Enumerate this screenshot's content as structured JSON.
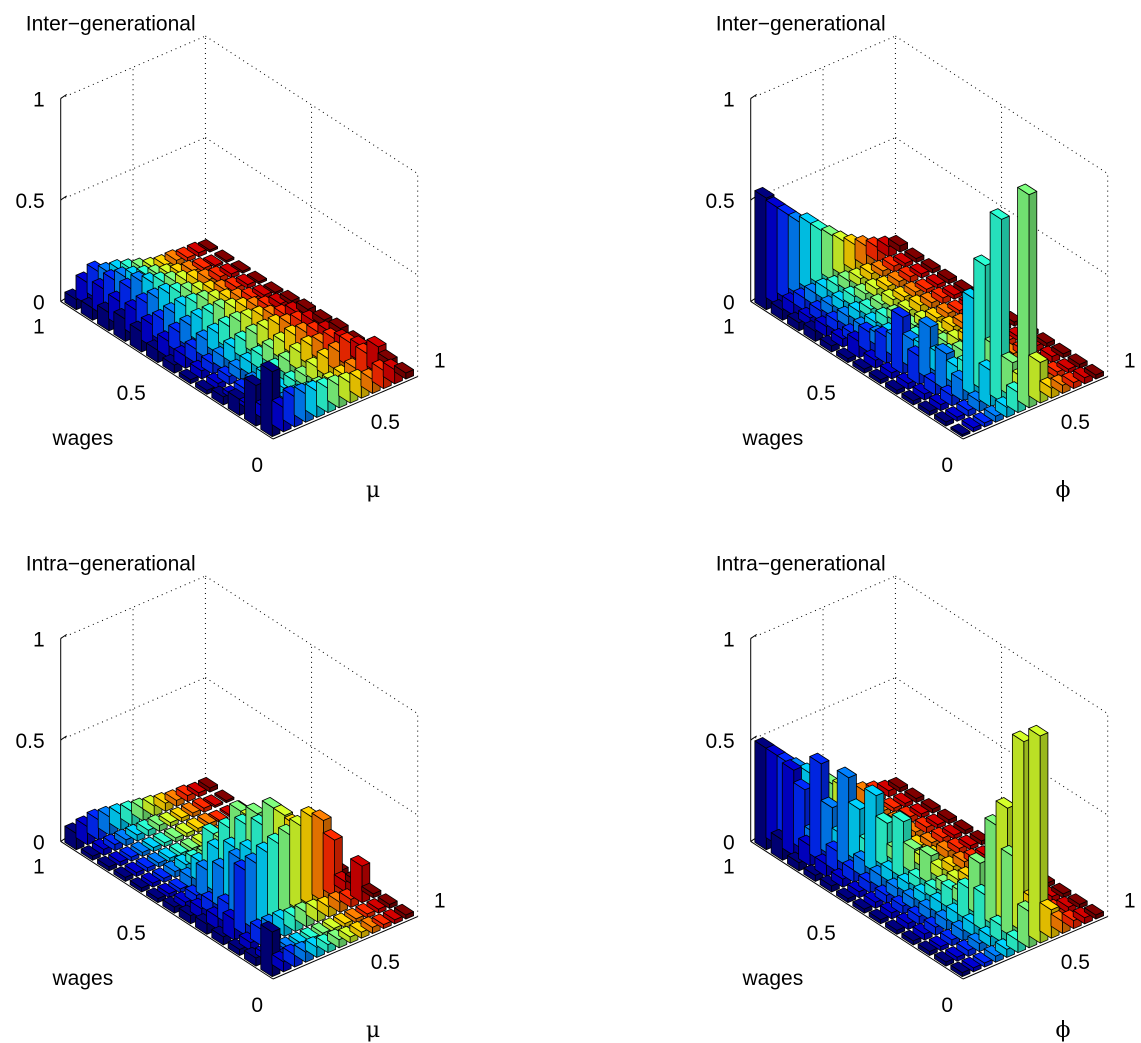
{
  "chart_data": [
    {
      "type": "bar3d",
      "title": "Inter−generational",
      "xlabel": "μ",
      "ylabel": "wages",
      "x_ticks": [
        "0.5",
        "1"
      ],
      "y_ticks": [
        "1",
        "0.5",
        "0"
      ],
      "z_ticks": [
        "0",
        "0.5",
        "1"
      ],
      "zlim": [
        0,
        1
      ],
      "grid": true,
      "row_heights": [
        [
          0.05,
          0.11,
          0.14,
          0.11,
          0.1,
          0.08,
          0.06,
          0.04,
          0.03,
          0.03,
          0.02,
          0.02,
          0.01
        ],
        [
          0.06,
          0.13,
          0.15,
          0.14,
          0.12,
          0.1,
          0.08,
          0.06,
          0.04,
          0.03,
          0.02,
          0.01,
          0.01
        ],
        [
          0.09,
          0.12,
          0.16,
          0.17,
          0.14,
          0.12,
          0.1,
          0.08,
          0.06,
          0.04,
          0.03,
          0.02,
          0.01
        ],
        [
          0.11,
          0.13,
          0.14,
          0.14,
          0.14,
          0.12,
          0.1,
          0.08,
          0.06,
          0.04,
          0.03,
          0.02,
          0.01
        ],
        [
          0.1,
          0.11,
          0.11,
          0.12,
          0.13,
          0.12,
          0.11,
          0.09,
          0.07,
          0.05,
          0.03,
          0.02,
          0.01
        ],
        [
          0.06,
          0.08,
          0.1,
          0.11,
          0.12,
          0.12,
          0.12,
          0.1,
          0.08,
          0.06,
          0.04,
          0.03,
          0.02
        ],
        [
          0.04,
          0.06,
          0.07,
          0.09,
          0.1,
          0.11,
          0.11,
          0.1,
          0.09,
          0.07,
          0.05,
          0.04,
          0.03
        ],
        [
          0.02,
          0.04,
          0.05,
          0.06,
          0.08,
          0.09,
          0.1,
          0.1,
          0.1,
          0.08,
          0.07,
          0.05,
          0.03
        ],
        [
          0.02,
          0.03,
          0.04,
          0.05,
          0.06,
          0.07,
          0.08,
          0.09,
          0.1,
          0.09,
          0.07,
          0.05,
          0.04
        ],
        [
          0.04,
          0.02,
          0.03,
          0.04,
          0.05,
          0.06,
          0.07,
          0.09,
          0.1,
          0.09,
          0.09,
          0.06,
          0.03
        ],
        [
          0.08,
          0.02,
          0.02,
          0.03,
          0.04,
          0.05,
          0.05,
          0.07,
          0.09,
          0.1,
          0.12,
          0.08,
          0.03
        ],
        [
          0.2,
          0.06,
          0.05,
          0.05,
          0.06,
          0.05,
          0.05,
          0.05,
          0.06,
          0.07,
          0.12,
          0.13,
          0.04
        ],
        [
          0.32,
          0.12,
          0.15,
          0.14,
          0.13,
          0.12,
          0.11,
          0.1,
          0.09,
          0.07,
          0.09,
          0.07,
          0.03
        ]
      ]
    },
    {
      "type": "bar3d",
      "title": "Inter−generational",
      "xlabel": "ϕ",
      "ylabel": "wages",
      "x_ticks": [
        "0.5",
        "1"
      ],
      "y_ticks": [
        "1",
        "0.5",
        "0"
      ],
      "z_ticks": [
        "0",
        "0.5",
        "1"
      ],
      "zlim": [
        0,
        1
      ],
      "grid": true,
      "row_heights": [
        [
          0.55,
          0.48,
          0.42,
          0.36,
          0.33,
          0.27,
          0.22,
          0.17,
          0.13,
          0.1,
          0.07,
          0.05,
          0.03
        ],
        [
          0.05,
          0.06,
          0.06,
          0.06,
          0.06,
          0.05,
          0.05,
          0.04,
          0.04,
          0.03,
          0.03,
          0.02,
          0.02
        ],
        [
          0.04,
          0.04,
          0.05,
          0.05,
          0.05,
          0.05,
          0.04,
          0.04,
          0.03,
          0.03,
          0.03,
          0.02,
          0.02
        ],
        [
          0.05,
          0.05,
          0.05,
          0.05,
          0.05,
          0.04,
          0.04,
          0.04,
          0.03,
          0.03,
          0.02,
          0.02,
          0.02
        ],
        [
          0.03,
          0.04,
          0.04,
          0.05,
          0.05,
          0.05,
          0.04,
          0.04,
          0.04,
          0.03,
          0.03,
          0.02,
          0.02
        ],
        [
          0.02,
          0.08,
          0.1,
          0.06,
          0.05,
          0.05,
          0.04,
          0.04,
          0.03,
          0.03,
          0.02,
          0.02,
          0.01
        ],
        [
          0.02,
          0.04,
          0.13,
          0.1,
          0.07,
          0.06,
          0.05,
          0.04,
          0.04,
          0.03,
          0.03,
          0.02,
          0.02
        ],
        [
          0.02,
          0.03,
          0.28,
          0.14,
          0.09,
          0.08,
          0.06,
          0.05,
          0.04,
          0.03,
          0.03,
          0.02,
          0.02
        ],
        [
          0.02,
          0.03,
          0.14,
          0.26,
          0.1,
          0.08,
          0.07,
          0.05,
          0.04,
          0.04,
          0.03,
          0.02,
          0.02
        ],
        [
          0.02,
          0.03,
          0.06,
          0.18,
          0.09,
          0.08,
          0.06,
          0.05,
          0.04,
          0.04,
          0.03,
          0.03,
          0.02
        ],
        [
          0.02,
          0.03,
          0.05,
          0.1,
          0.48,
          0.62,
          0.2,
          0.06,
          0.05,
          0.04,
          0.03,
          0.03,
          0.02
        ],
        [
          0.02,
          0.02,
          0.03,
          0.05,
          0.18,
          0.9,
          0.17,
          0.07,
          0.05,
          0.04,
          0.03,
          0.02,
          0.02
        ],
        [
          0.01,
          0.02,
          0.02,
          0.03,
          0.05,
          0.1,
          1.05,
          0.2,
          0.05,
          0.04,
          0.03,
          0.03,
          0.02
        ]
      ]
    },
    {
      "type": "bar3d",
      "title": "Intra−generational",
      "xlabel": "μ",
      "ylabel": "wages",
      "x_ticks": [
        "0.5",
        "1"
      ],
      "y_ticks": [
        "1",
        "0.5",
        "0"
      ],
      "z_ticks": [
        "0",
        "0.5",
        "1"
      ],
      "zlim": [
        0,
        1
      ],
      "grid": true,
      "row_heights": [
        [
          0.08,
          0.09,
          0.1,
          0.09,
          0.08,
          0.07,
          0.06,
          0.05,
          0.04,
          0.03,
          0.03,
          0.02,
          0.02
        ],
        [
          0.02,
          0.03,
          0.03,
          0.03,
          0.03,
          0.03,
          0.03,
          0.02,
          0.02,
          0.02,
          0.02,
          0.01,
          0.01
        ],
        [
          0.02,
          0.02,
          0.02,
          0.02,
          0.02,
          0.02,
          0.02,
          0.02,
          0.02,
          0.02,
          0.01,
          0.01,
          0.01
        ],
        [
          0.02,
          0.02,
          0.02,
          0.02,
          0.02,
          0.02,
          0.02,
          0.02,
          0.02,
          0.02,
          0.01,
          0.01,
          0.01
        ],
        [
          0.02,
          0.02,
          0.02,
          0.03,
          0.04,
          0.04,
          0.04,
          0.04,
          0.03,
          0.03,
          0.02,
          0.02,
          0.01
        ],
        [
          0.02,
          0.02,
          0.02,
          0.05,
          0.1,
          0.22,
          0.16,
          0.06,
          0.05,
          0.04,
          0.03,
          0.02,
          0.02
        ],
        [
          0.03,
          0.03,
          0.04,
          0.14,
          0.22,
          0.3,
          0.36,
          0.3,
          0.08,
          0.06,
          0.04,
          0.03,
          0.02
        ],
        [
          0.04,
          0.05,
          0.06,
          0.2,
          0.28,
          0.37,
          0.4,
          0.3,
          0.24,
          0.08,
          0.05,
          0.04,
          0.03
        ],
        [
          0.05,
          0.06,
          0.1,
          0.3,
          0.32,
          0.42,
          0.48,
          0.42,
          0.35,
          0.26,
          0.06,
          0.04,
          0.03
        ],
        [
          0.04,
          0.1,
          0.32,
          0.33,
          0.36,
          0.38,
          0.4,
          0.42,
          0.44,
          0.4,
          0.28,
          0.05,
          0.03
        ],
        [
          0.03,
          0.04,
          0.08,
          0.08,
          0.08,
          0.07,
          0.07,
          0.06,
          0.05,
          0.05,
          0.04,
          0.18,
          0.02
        ],
        [
          0.04,
          0.03,
          0.03,
          0.02,
          0.02,
          0.02,
          0.02,
          0.02,
          0.02,
          0.02,
          0.02,
          0.02,
          0.02
        ],
        [
          0.22,
          0.05,
          0.06,
          0.05,
          0.05,
          0.04,
          0.04,
          0.03,
          0.03,
          0.03,
          0.02,
          0.02,
          0.02
        ]
      ]
    },
    {
      "type": "bar3d",
      "title": "Intra−generational",
      "xlabel": "ϕ",
      "ylabel": "wages",
      "x_ticks": [
        "0.5",
        "1"
      ],
      "y_ticks": [
        "1",
        "0.5",
        "0"
      ],
      "z_ticks": [
        "0",
        "0.5",
        "1"
      ],
      "zlim": [
        0,
        1
      ],
      "grid": true,
      "row_heights": [
        [
          0.5,
          0.44,
          0.38,
          0.33,
          0.28,
          0.23,
          0.18,
          0.14,
          0.1,
          0.07,
          0.05,
          0.03,
          0.02
        ],
        [
          0.1,
          0.42,
          0.3,
          0.06,
          0.05,
          0.05,
          0.04,
          0.04,
          0.03,
          0.03,
          0.02,
          0.02,
          0.02
        ],
        [
          0.04,
          0.1,
          0.48,
          0.24,
          0.08,
          0.06,
          0.05,
          0.04,
          0.04,
          0.03,
          0.03,
          0.02,
          0.02
        ],
        [
          0.03,
          0.06,
          0.1,
          0.44,
          0.26,
          0.07,
          0.06,
          0.05,
          0.04,
          0.03,
          0.03,
          0.02,
          0.02
        ],
        [
          0.03,
          0.04,
          0.06,
          0.08,
          0.38,
          0.22,
          0.06,
          0.05,
          0.04,
          0.03,
          0.03,
          0.02,
          0.02
        ],
        [
          0.02,
          0.03,
          0.05,
          0.06,
          0.06,
          0.28,
          0.12,
          0.05,
          0.04,
          0.04,
          0.03,
          0.02,
          0.02
        ],
        [
          0.02,
          0.03,
          0.04,
          0.05,
          0.05,
          0.05,
          0.14,
          0.05,
          0.04,
          0.04,
          0.03,
          0.02,
          0.02
        ],
        [
          0.02,
          0.03,
          0.04,
          0.05,
          0.05,
          0.05,
          0.05,
          0.05,
          0.04,
          0.04,
          0.03,
          0.02,
          0.02
        ],
        [
          0.02,
          0.03,
          0.04,
          0.05,
          0.06,
          0.1,
          0.06,
          0.05,
          0.04,
          0.04,
          0.03,
          0.02,
          0.02
        ],
        [
          0.02,
          0.03,
          0.04,
          0.05,
          0.06,
          0.16,
          0.26,
          0.06,
          0.05,
          0.04,
          0.03,
          0.02,
          0.02
        ],
        [
          0.02,
          0.02,
          0.03,
          0.05,
          0.06,
          0.18,
          0.5,
          0.56,
          0.08,
          0.05,
          0.04,
          0.03,
          0.02
        ],
        [
          0.02,
          0.02,
          0.03,
          0.04,
          0.05,
          0.08,
          0.4,
          0.94,
          0.14,
          0.05,
          0.04,
          0.03,
          0.02
        ],
        [
          0.02,
          0.02,
          0.02,
          0.03,
          0.04,
          0.06,
          0.18,
          1.02,
          0.14,
          0.06,
          0.04,
          0.03,
          0.02
        ]
      ]
    }
  ]
}
